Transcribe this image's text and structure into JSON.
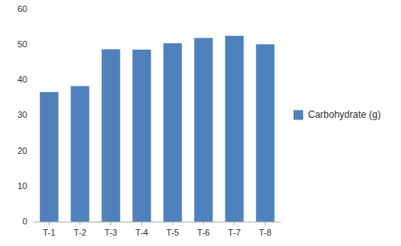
{
  "chart_data": {
    "type": "bar",
    "categories": [
      "T-1",
      "T-2",
      "T-3",
      "T-4",
      "T-5",
      "T-6",
      "T-7",
      "T-8"
    ],
    "series": [
      {
        "name": "Carbohydrate (g)",
        "color": "#4F81BD",
        "values": [
          36.7,
          38.4,
          48.8,
          48.7,
          50.5,
          52.0,
          52.6,
          50.2
        ]
      }
    ],
    "ylim": [
      0,
      60
    ],
    "yticks": [
      0,
      10,
      20,
      30,
      40,
      50,
      60
    ],
    "grid": false,
    "legend": "right"
  }
}
